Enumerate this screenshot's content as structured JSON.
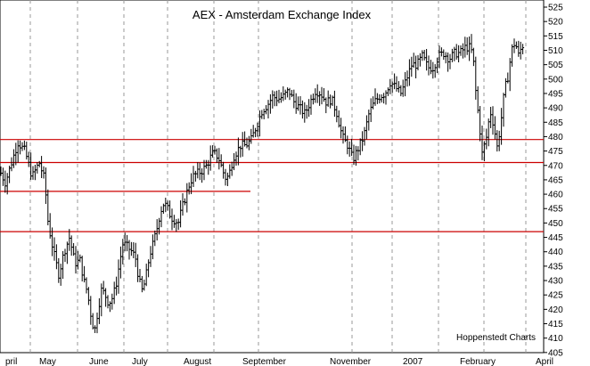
{
  "chart_data": {
    "type": "ohlc",
    "title": "AEX - Amsterdam Exchange Index",
    "credit": "Hoppenstedt Charts",
    "ylim": [
      400,
      528
    ],
    "y_ticks": [
      405,
      410,
      415,
      420,
      425,
      430,
      435,
      440,
      445,
      450,
      455,
      460,
      465,
      470,
      475,
      480,
      485,
      490,
      495,
      500,
      505,
      510,
      515,
      520,
      525
    ],
    "x_labels": [
      "pril",
      "May",
      "June",
      "July",
      "August",
      "September",
      "November",
      "2007",
      "February",
      "April"
    ],
    "vertical_gridlines": true,
    "support_lines": [
      {
        "value": 479,
        "from_label": "pril",
        "to_label": "April"
      },
      {
        "value": 471,
        "from_label": "pril",
        "to_label": "April"
      },
      {
        "value": 461,
        "from_label": "pril",
        "to_label": "September"
      },
      {
        "value": 447,
        "from_label": "pril",
        "to_label": "April"
      }
    ],
    "price_path": [
      [
        0,
        468
      ],
      [
        6,
        464
      ],
      [
        12,
        470
      ],
      [
        20,
        478
      ],
      [
        28,
        475
      ],
      [
        36,
        466
      ],
      [
        44,
        471
      ],
      [
        50,
        465
      ],
      [
        54,
        450
      ],
      [
        60,
        440
      ],
      [
        66,
        432
      ],
      [
        72,
        440
      ],
      [
        78,
        445
      ],
      [
        84,
        436
      ],
      [
        90,
        437
      ],
      [
        94,
        430
      ],
      [
        98,
        426
      ],
      [
        102,
        418
      ],
      [
        106,
        412
      ],
      [
        110,
        420
      ],
      [
        114,
        427
      ],
      [
        118,
        425
      ],
      [
        122,
        422
      ],
      [
        126,
        424
      ],
      [
        130,
        428
      ],
      [
        134,
        436
      ],
      [
        138,
        443
      ],
      [
        142,
        442
      ],
      [
        148,
        440
      ],
      [
        152,
        438
      ],
      [
        156,
        430
      ],
      [
        160,
        426
      ],
      [
        164,
        432
      ],
      [
        168,
        439
      ],
      [
        172,
        443
      ],
      [
        176,
        448
      ],
      [
        180,
        454
      ],
      [
        184,
        457
      ],
      [
        188,
        455
      ],
      [
        192,
        452
      ],
      [
        196,
        451
      ],
      [
        200,
        450
      ],
      [
        204,
        455
      ],
      [
        208,
        459
      ],
      [
        212,
        463
      ],
      [
        216,
        466
      ],
      [
        220,
        467
      ],
      [
        226,
        468
      ],
      [
        232,
        470
      ],
      [
        238,
        474
      ],
      [
        242,
        474
      ],
      [
        246,
        472
      ],
      [
        250,
        468
      ],
      [
        254,
        465
      ],
      [
        258,
        468
      ],
      [
        262,
        473
      ],
      [
        266,
        475
      ],
      [
        270,
        477
      ],
      [
        276,
        477
      ],
      [
        282,
        479
      ],
      [
        288,
        484
      ],
      [
        294,
        489
      ],
      [
        300,
        491
      ],
      [
        306,
        494
      ],
      [
        312,
        493
      ],
      [
        318,
        494
      ],
      [
        324,
        496
      ],
      [
        330,
        492
      ],
      [
        336,
        490
      ],
      [
        342,
        488
      ],
      [
        348,
        492
      ],
      [
        354,
        496
      ],
      [
        360,
        495
      ],
      [
        366,
        492
      ],
      [
        372,
        493
      ],
      [
        378,
        488
      ],
      [
        384,
        480
      ],
      [
        390,
        477
      ],
      [
        396,
        472
      ],
      [
        402,
        476
      ],
      [
        408,
        480
      ],
      [
        414,
        488
      ],
      [
        420,
        492
      ],
      [
        426,
        494
      ],
      [
        432,
        495
      ],
      [
        438,
        499
      ],
      [
        444,
        497
      ],
      [
        450,
        495
      ],
      [
        456,
        500
      ],
      [
        462,
        505
      ],
      [
        468,
        505
      ],
      [
        474,
        508
      ],
      [
        480,
        504
      ],
      [
        486,
        504
      ],
      [
        492,
        508
      ],
      [
        498,
        509
      ],
      [
        504,
        507
      ],
      [
        510,
        509
      ],
      [
        516,
        509
      ],
      [
        522,
        511
      ],
      [
        528,
        511
      ],
      [
        531,
        507
      ],
      [
        534,
        495
      ],
      [
        538,
        484
      ],
      [
        541,
        474
      ],
      [
        546,
        480
      ],
      [
        550,
        489
      ],
      [
        554,
        484
      ],
      [
        558,
        476
      ],
      [
        562,
        485
      ],
      [
        566,
        496
      ],
      [
        570,
        501
      ],
      [
        574,
        510
      ],
      [
        578,
        513
      ],
      [
        582,
        508
      ],
      [
        586,
        512
      ],
      [
        588,
        511
      ]
    ]
  }
}
